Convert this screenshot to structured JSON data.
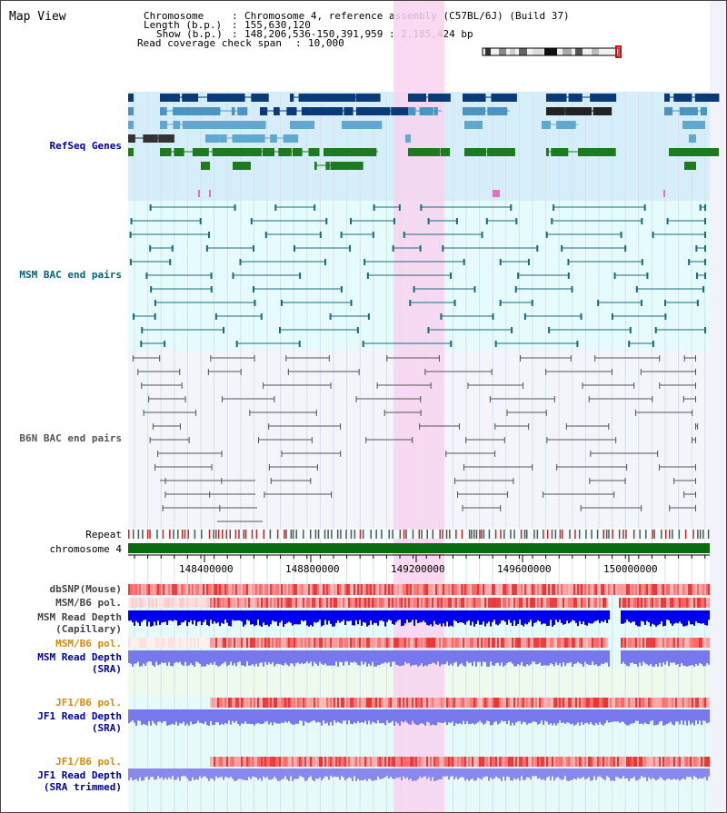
{
  "header": {
    "title": "Map View",
    "chromosome_label": "Chromosome",
    "chromosome_value": "Chromosome 4, reference assembly (C57BL/6J) (Build 37)",
    "length_label": "Length (b.p.)",
    "length_value": "155,630,120",
    "show_label": "Show (b.p.)",
    "show_value": "148,206,536-150,391,959 : 2,185,424 bp",
    "coverage_label": "Read coverage check span",
    "coverage_value": "10,000"
  },
  "tracks": {
    "refseq": {
      "label": "RefSeq Genes",
      "color": "#0000aa"
    },
    "msm_bac": {
      "label": "MSM BAC end pairs",
      "color": "#006677"
    },
    "b6n_bac": {
      "label": "B6N BAC end pairs",
      "color": "#555555"
    },
    "repeat": {
      "label": "Repeat"
    },
    "chromosome": {
      "label": "chromosome 4"
    },
    "dbsnp": {
      "label": "dbSNP(Mouse)"
    },
    "msm_pol": {
      "label": "MSM/B6 pol."
    },
    "msm_depth_cap": {
      "label": "MSM Read Depth",
      "sub": "(Capillary)"
    },
    "msm_pol2": {
      "label": "MSM/B6 pol.",
      "color": "#dd8800"
    },
    "msm_depth_sra": {
      "label": "MSM Read Depth",
      "sub": "(SRA)",
      "color": "#0000aa"
    },
    "jf1_pol": {
      "label": "JF1/B6 pol.",
      "color": "#dd8800"
    },
    "jf1_depth_sra": {
      "label": "JF1 Read Depth",
      "sub": "(SRA)",
      "color": "#0000aa"
    },
    "jf1_pol2": {
      "label": "JF1/B6 pol.",
      "color": "#dd8800"
    },
    "jf1_depth_trim": {
      "label": "JF1 Read Depth",
      "sub": "(SRA trimmed)",
      "color": "#0000aa"
    }
  },
  "axis": {
    "ticks": [
      "148400000",
      "148800000",
      "149200000",
      "149600000",
      "150000000"
    ]
  },
  "colors": {
    "highlight": "#f8d4f0",
    "refseq_bg": "#d6eefa",
    "msm_bg": "#e6fcfc",
    "dark_blue": "#0a3a78",
    "mid_blue": "#4a94c0",
    "light_blue": "#60a8d0",
    "green": "#1e7a1e",
    "depth_blue": "#0000ee",
    "depth_light": "#7777ee",
    "pol_red": "#ee2222"
  }
}
